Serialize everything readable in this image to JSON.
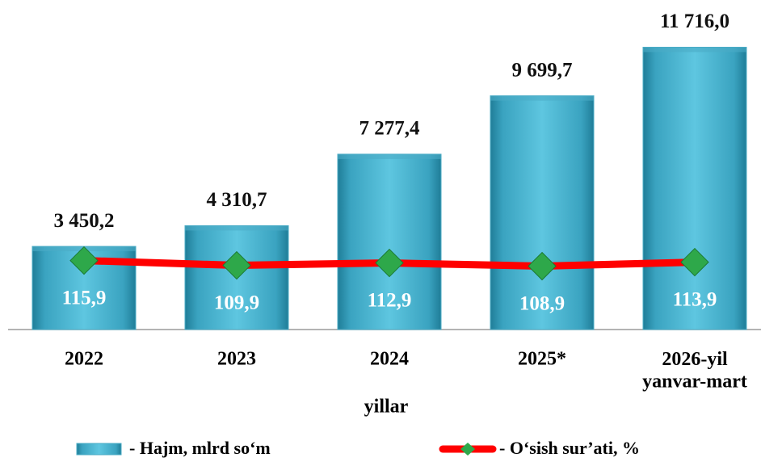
{
  "chart_data": {
    "type": "bar",
    "categories": [
      "2022",
      "2023",
      "2024",
      "2025*",
      "2026-yil\nyanvar-mart"
    ],
    "x_label": "yillar",
    "series": [
      {
        "name": "- Hajm, mlrd so‘m",
        "type": "bar",
        "color": "#4bacc6",
        "values": [
          3450.2,
          4310.7,
          7277.4,
          9699.7,
          11716.0
        ],
        "value_labels": [
          "3 450,2",
          "4 310,7",
          "7 277,4",
          "9 699,7",
          "11 716,0"
        ]
      },
      {
        "name": "- O‘sish sur’ati, %",
        "type": "line",
        "axis": "y2",
        "color": "#ff0000",
        "marker_color": "#2ea84a",
        "values": [
          115.9,
          109.9,
          112.9,
          108.9,
          113.9
        ],
        "value_labels": [
          "115,9",
          "109,9",
          "112,9",
          "108,9",
          "113,9"
        ]
      }
    ],
    "ylim": [
      0,
      12000
    ],
    "y2lim": [
      30,
      390
    ]
  }
}
